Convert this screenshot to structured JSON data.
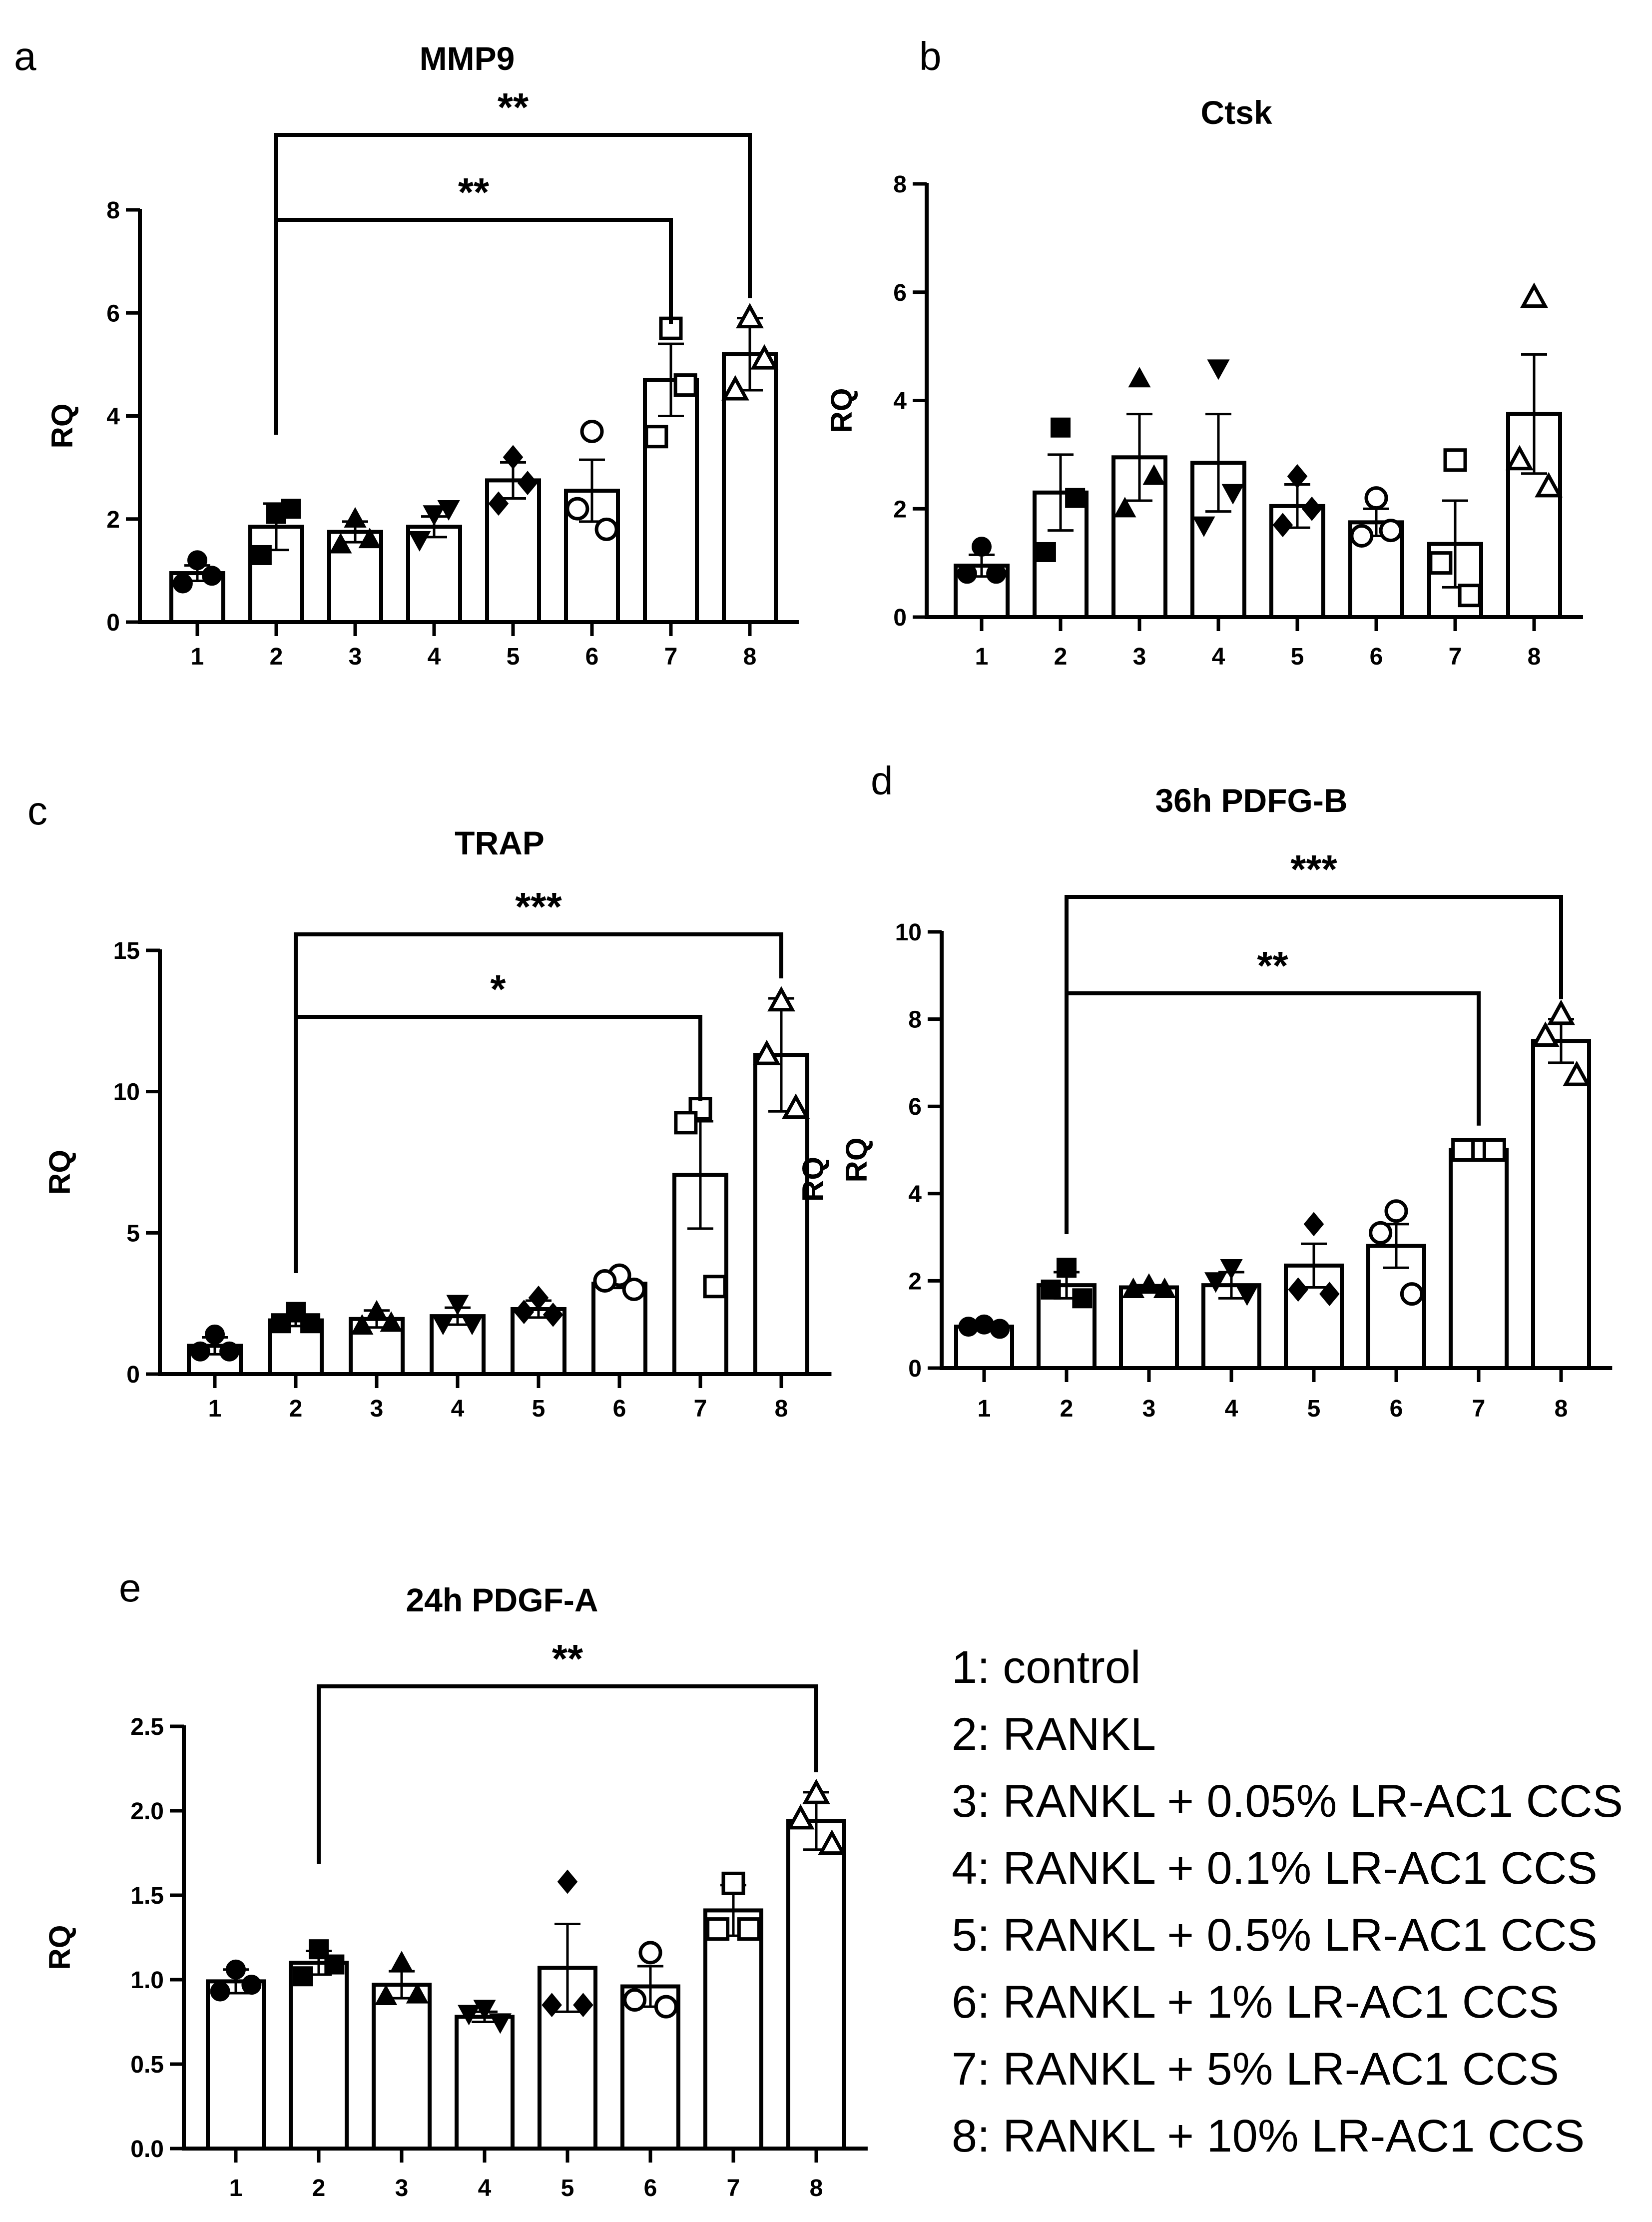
{
  "figure": {
    "stray_label": "RQ"
  },
  "legend": [
    "1: control",
    "2: RANKL",
    "3: RANKL + 0.05% LR-AC1 CCS",
    "4: RANKL + 0.1% LR-AC1 CCS",
    "5: RANKL + 0.5% LR-AC1 CCS",
    "6: RANKL + 1% LR-AC1 CCS",
    "7: RANKL + 5% LR-AC1 CCS",
    "8: RANKL + 10% LR-AC1 CCS"
  ],
  "chart_data": [
    {
      "panel": "a",
      "type": "bar",
      "title": "MMP9",
      "ylabel": "RQ",
      "xlabel": "",
      "categories": [
        "1",
        "2",
        "3",
        "4",
        "5",
        "6",
        "7",
        "8"
      ],
      "ylim": [
        0,
        8
      ],
      "yticks": [
        0,
        2,
        4,
        6,
        8
      ],
      "ytick_labels": [
        "0",
        "2",
        "4",
        "6",
        "8"
      ],
      "values": [
        0.95,
        1.85,
        1.75,
        1.85,
        2.75,
        2.55,
        4.7,
        5.2
      ],
      "errors": [
        0.15,
        0.45,
        0.2,
        0.2,
        0.35,
        0.6,
        0.7,
        0.7
      ],
      "points": [
        [
          1.2,
          0.75,
          0.9
        ],
        [
          2.1,
          1.3,
          2.2
        ],
        [
          2.0,
          1.5,
          1.6
        ],
        [
          2.1,
          1.6,
          2.2
        ],
        [
          3.2,
          2.3,
          2.7
        ],
        [
          3.7,
          2.2,
          1.8
        ],
        [
          5.7,
          3.6,
          4.6
        ],
        [
          5.9,
          4.5,
          5.1
        ]
      ],
      "markers": [
        "circle-filled",
        "square-filled",
        "triangle-filled",
        "triangle-down-filled",
        "diamond-filled",
        "circle-open",
        "square-open",
        "triangle-open"
      ],
      "significance": [
        {
          "from": 2,
          "to": 7,
          "label": "**"
        },
        {
          "from": 2,
          "to": 8,
          "label": "**"
        }
      ]
    },
    {
      "panel": "b",
      "type": "bar",
      "title": "Ctsk",
      "ylabel": "RQ",
      "xlabel": "",
      "categories": [
        "1",
        "2",
        "3",
        "4",
        "5",
        "6",
        "7",
        "8"
      ],
      "ylim": [
        0,
        8
      ],
      "yticks": [
        0,
        2,
        4,
        6,
        8
      ],
      "ytick_labels": [
        "0",
        "2",
        "4",
        "6",
        "8"
      ],
      "values": [
        0.95,
        2.3,
        2.95,
        2.85,
        2.05,
        1.75,
        1.35,
        3.75
      ],
      "errors": [
        0.2,
        0.7,
        0.8,
        0.9,
        0.4,
        0.25,
        0.8,
        1.1
      ],
      "points": [
        [
          1.3,
          0.8,
          0.8
        ],
        [
          3.5,
          1.2,
          2.2
        ],
        [
          4.4,
          2.0,
          2.6
        ],
        [
          4.6,
          1.7,
          2.3
        ],
        [
          2.6,
          1.7,
          2.0
        ],
        [
          2.2,
          1.5,
          1.6
        ],
        [
          2.9,
          1.0,
          0.4
        ],
        [
          5.9,
          2.9,
          2.4
        ]
      ],
      "markers": [
        "circle-filled",
        "square-filled",
        "triangle-filled",
        "triangle-down-filled",
        "diamond-filled",
        "circle-open",
        "square-open",
        "triangle-open"
      ],
      "significance": []
    },
    {
      "panel": "c",
      "type": "bar",
      "title": "TRAP",
      "ylabel": "RQ",
      "xlabel": "",
      "categories": [
        "1",
        "2",
        "3",
        "4",
        "5",
        "6",
        "7",
        "8"
      ],
      "ylim": [
        0,
        15
      ],
      "yticks": [
        0,
        5,
        10,
        15
      ],
      "ytick_labels": [
        "0",
        "5",
        "10",
        "15"
      ],
      "values": [
        1.0,
        1.9,
        1.95,
        2.05,
        2.3,
        3.2,
        7.05,
        11.3
      ],
      "errors": [
        0.3,
        0.2,
        0.3,
        0.3,
        0.3,
        0.15,
        1.9,
        2.0
      ],
      "points": [
        [
          1.4,
          0.8,
          0.8
        ],
        [
          2.2,
          1.8,
          1.8
        ],
        [
          2.2,
          1.7,
          1.8
        ],
        [
          2.5,
          1.8,
          1.8
        ],
        [
          2.7,
          2.2,
          2.1
        ],
        [
          3.5,
          3.3,
          3.0
        ],
        [
          9.4,
          8.9,
          3.1
        ],
        [
          13.2,
          11.3,
          9.4
        ]
      ],
      "markers": [
        "circle-filled",
        "square-filled",
        "triangle-filled",
        "triangle-down-filled",
        "diamond-filled",
        "circle-open",
        "square-open",
        "triangle-open"
      ],
      "significance": [
        {
          "from": 2,
          "to": 7,
          "label": "*"
        },
        {
          "from": 2,
          "to": 8,
          "label": "***"
        }
      ]
    },
    {
      "panel": "d",
      "type": "bar",
      "title": "36h PDFG-B",
      "ylabel": "RQ",
      "xlabel": "",
      "categories": [
        "1",
        "2",
        "3",
        "4",
        "5",
        "6",
        "7",
        "8"
      ],
      "ylim": [
        0,
        10
      ],
      "yticks": [
        0,
        2,
        4,
        6,
        8,
        10
      ],
      "ytick_labels": [
        "0",
        "2",
        "4",
        "6",
        "8",
        "10"
      ],
      "values": [
        0.95,
        1.9,
        1.85,
        1.9,
        2.35,
        2.8,
        5.0,
        7.5
      ],
      "errors": [
        0.05,
        0.3,
        0.05,
        0.3,
        0.5,
        0.5,
        0.1,
        0.5
      ],
      "points": [
        [
          1.0,
          0.95,
          0.9
        ],
        [
          2.3,
          1.8,
          1.6
        ],
        [
          1.9,
          1.8,
          1.8
        ],
        [
          2.3,
          2.0,
          1.7
        ],
        [
          3.3,
          1.8,
          1.7
        ],
        [
          3.6,
          3.1,
          1.7
        ],
        [
          5.0,
          5.0,
          5.0
        ],
        [
          8.1,
          7.6,
          6.7
        ]
      ],
      "markers": [
        "circle-filled",
        "square-filled",
        "triangle-filled",
        "triangle-down-filled",
        "diamond-filled",
        "circle-open",
        "square-open",
        "triangle-open"
      ],
      "significance": [
        {
          "from": 2,
          "to": 7,
          "label": "**"
        },
        {
          "from": 2,
          "to": 8,
          "label": "***"
        }
      ]
    },
    {
      "panel": "e",
      "type": "bar",
      "title": "24h PDGF-A",
      "ylabel": "RQ",
      "xlabel": "",
      "categories": [
        "1",
        "2",
        "3",
        "4",
        "5",
        "6",
        "7",
        "8"
      ],
      "ylim": [
        0,
        2.5
      ],
      "yticks": [
        0,
        0.5,
        1.0,
        1.5,
        2.0,
        2.5
      ],
      "ytick_labels": [
        "0.0",
        "0.5",
        "1.0",
        "1.5",
        "2.0",
        "2.5"
      ],
      "values": [
        0.99,
        1.1,
        0.97,
        0.78,
        1.07,
        0.96,
        1.41,
        1.94
      ],
      "errors": [
        0.07,
        0.07,
        0.08,
        0.03,
        0.26,
        0.12,
        0.15,
        0.17
      ],
      "points": [
        [
          1.06,
          0.93,
          0.97
        ],
        [
          1.18,
          1.02,
          1.09
        ],
        [
          1.1,
          0.9,
          0.91
        ],
        [
          0.83,
          0.8,
          0.75
        ],
        [
          1.58,
          0.85,
          0.85
        ],
        [
          1.16,
          0.88,
          0.84
        ],
        [
          1.57,
          1.3,
          1.3
        ],
        [
          2.1,
          1.95,
          1.8
        ]
      ],
      "markers": [
        "circle-filled",
        "square-filled",
        "triangle-filled",
        "triangle-down-filled",
        "diamond-filled",
        "circle-open",
        "square-open",
        "triangle-open"
      ],
      "significance": [
        {
          "from": 2,
          "to": 8,
          "label": "**"
        }
      ]
    }
  ]
}
